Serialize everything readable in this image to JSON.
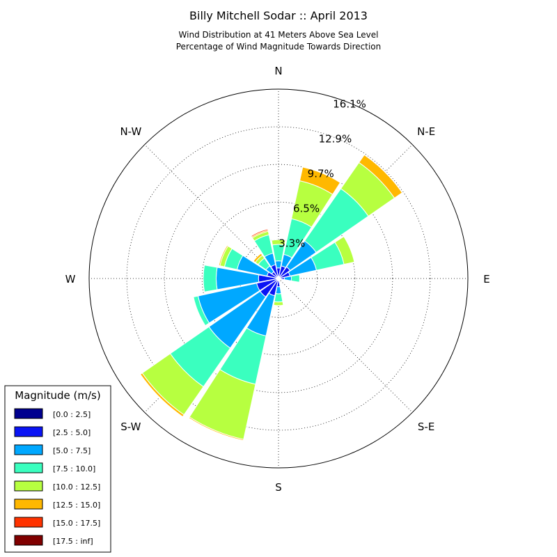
{
  "chart_data": {
    "type": "windrose",
    "title": "Billy Mitchell Sodar :: April 2013",
    "subtitle_line1": "Wind Distribution at 41 Meters Above Sea Level",
    "subtitle_line2": "Percentage of Wind Magnitude Towards Direction",
    "directions": [
      {
        "angle": 0,
        "label": "N"
      },
      {
        "angle": 45,
        "label": "N-E"
      },
      {
        "angle": 90,
        "label": "E"
      },
      {
        "angle": 135,
        "label": "S-E"
      },
      {
        "angle": 180,
        "label": "S"
      },
      {
        "angle": 225,
        "label": "S-W"
      },
      {
        "angle": 270,
        "label": "W"
      },
      {
        "angle": 315,
        "label": "N-W"
      }
    ],
    "rings": [
      3.3,
      6.5,
      9.7,
      12.9,
      16.1
    ],
    "ring_labels": [
      "3.3%",
      "6.5%",
      "9.7%",
      "12.9%",
      "16.1%"
    ],
    "r_max": 16.1,
    "legend_title": "Magnitude (m/s)",
    "bins": [
      {
        "label": "[0.0 : 2.5]",
        "color": "#00008f"
      },
      {
        "label": "[2.5 : 5.0]",
        "color": "#0a14f5"
      },
      {
        "label": "[5.0 : 7.5]",
        "color": "#00a8ff"
      },
      {
        "label": "[7.5 : 10.0]",
        "color": "#3affbf"
      },
      {
        "label": "[10.0 : 12.5]",
        "color": "#b7ff40"
      },
      {
        "label": "[12.5 : 15.0]",
        "color": "#ffb800"
      },
      {
        "label": "[15.0 : 17.5]",
        "color": "#ff3300"
      },
      {
        "label": "[17.5 : inf]",
        "color": "#800000"
      }
    ],
    "sector_width_deg": 20.5,
    "sectors": [
      {
        "dir": 0,
        "cumulative": [
          0.1,
          0.9,
          1.5,
          2.9,
          3.3,
          3.3,
          3.3,
          3.3
        ]
      },
      {
        "dir": 22.5,
        "cumulative": [
          0.1,
          1.1,
          2.1,
          5.2,
          8.5,
          9.7,
          9.75,
          9.75
        ]
      },
      {
        "dir": 45,
        "cumulative": [
          0.1,
          1.2,
          3.9,
          9.3,
          12.0,
          12.8,
          12.85,
          12.85
        ]
      },
      {
        "dir": 67.5,
        "cumulative": [
          0.1,
          1.0,
          3.3,
          5.7,
          6.6,
          6.6,
          6.6,
          6.6
        ]
      },
      {
        "dir": 90,
        "cumulative": [
          0.1,
          0.5,
          1.1,
          1.8,
          1.8,
          1.8,
          1.8,
          1.8
        ]
      },
      {
        "dir": 112.5,
        "cumulative": [
          0.1,
          0.2,
          0.2,
          0.2,
          0.2,
          0.2,
          0.2,
          0.2
        ]
      },
      {
        "dir": 135,
        "cumulative": [
          0.05,
          0.1,
          0.1,
          0.1,
          0.1,
          0.1,
          0.1,
          0.1
        ]
      },
      {
        "dir": 157.5,
        "cumulative": [
          0.05,
          0.1,
          0.1,
          0.1,
          0.1,
          0.1,
          0.1,
          0.1
        ]
      },
      {
        "dir": 180,
        "cumulative": [
          0.1,
          0.7,
          1.3,
          2.0,
          2.3,
          2.3,
          2.3,
          2.3
        ]
      },
      {
        "dir": 202.5,
        "cumulative": [
          0.1,
          1.5,
          5.0,
          9.2,
          14.0,
          14.1,
          14.1,
          14.1
        ]
      },
      {
        "dir": 225,
        "cumulative": [
          0.1,
          1.9,
          7.2,
          11.2,
          14.1,
          14.3,
          14.35,
          14.35
        ]
      },
      {
        "dir": 247.5,
        "cumulative": [
          0.1,
          1.9,
          7.0,
          7.4,
          7.4,
          7.4,
          7.4,
          7.4
        ]
      },
      {
        "dir": 270,
        "cumulative": [
          0.1,
          1.7,
          5.3,
          6.4,
          6.4,
          6.4,
          6.4,
          6.4
        ]
      },
      {
        "dir": 292.5,
        "cumulative": [
          0.1,
          1.0,
          3.6,
          4.7,
          5.1,
          5.2,
          5.2,
          5.2
        ]
      },
      {
        "dir": 315,
        "cumulative": [
          0.1,
          0.7,
          1.3,
          2.1,
          2.4,
          2.6,
          2.6,
          2.6
        ]
      },
      {
        "dir": 337.5,
        "cumulative": [
          0.1,
          1.2,
          2.2,
          3.8,
          4.1,
          4.2,
          4.3,
          4.3
        ]
      }
    ]
  }
}
